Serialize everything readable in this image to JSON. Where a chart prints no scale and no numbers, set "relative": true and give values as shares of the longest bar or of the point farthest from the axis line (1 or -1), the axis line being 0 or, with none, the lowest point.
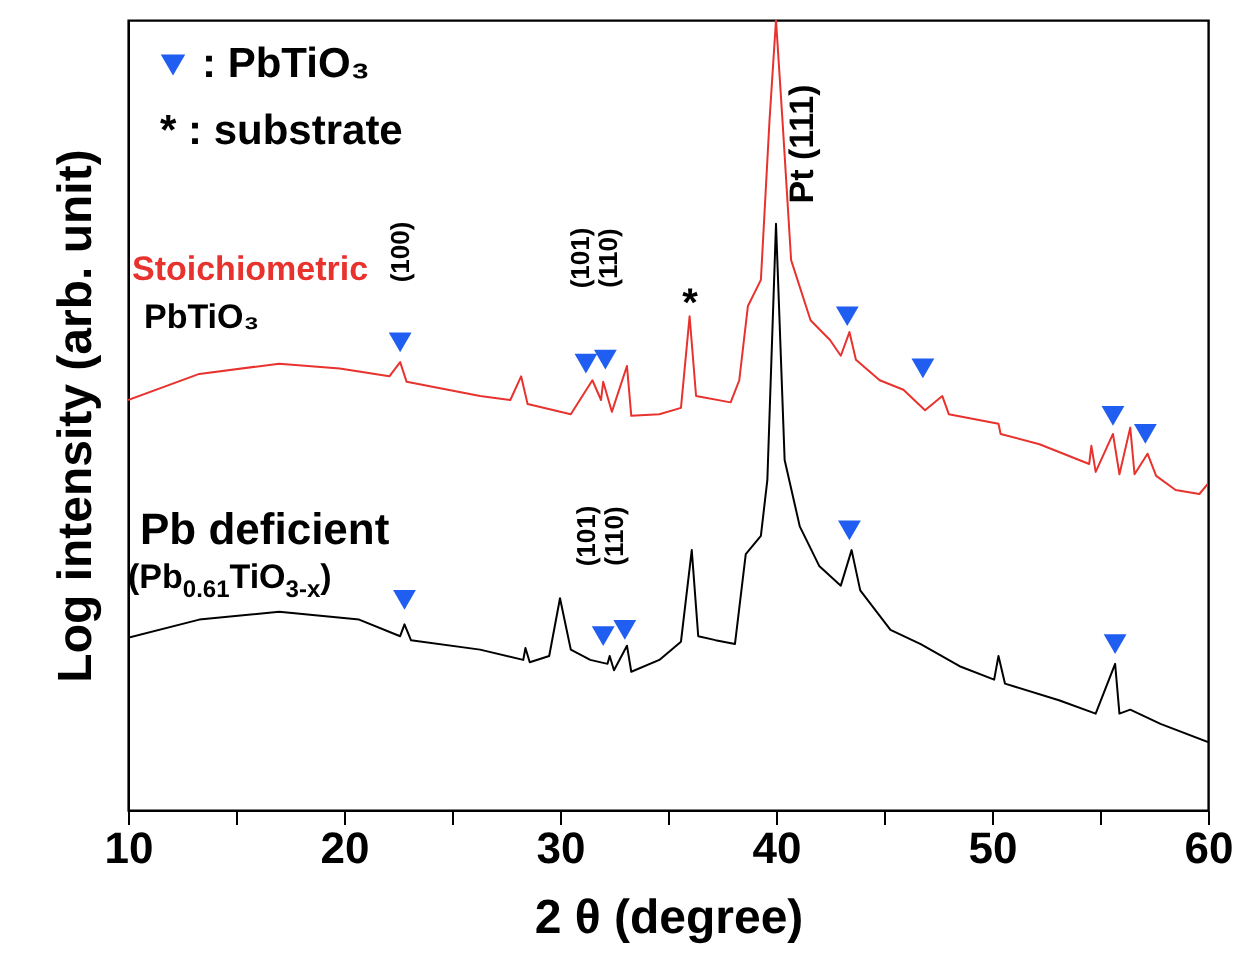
{
  "chart_data": {
    "type": "line",
    "xlabel": "2 θ (degree)",
    "ylabel": "Log intensity (arb. unit)",
    "relative": true,
    "xlim": [
      10,
      60
    ],
    "xticks": [
      10,
      {
        "value": 15,
        "label": null
      },
      20,
      {
        "value": 25,
        "label": null
      },
      30,
      {
        "value": 35,
        "label": null
      },
      40,
      {
        "value": 45,
        "label": null
      },
      50,
      {
        "value": 55,
        "label": null
      },
      60
    ],
    "grid": false,
    "legend": "top left",
    "series": [
      {
        "name": "Stoichiometric",
        "color": "#e8322e",
        "x": [
          10,
          13.3,
          17.0,
          19.8,
          22.1,
          22.6,
          22.9,
          26.3,
          27.7,
          28.2,
          28.5,
          30.5,
          31.5,
          31.9,
          32.0,
          32.4,
          33.1,
          33.3,
          34.6,
          35.6,
          36.0,
          36.3,
          37.9,
          38.3,
          38.7,
          39.3,
          39.7,
          40.0,
          40.3,
          40.7,
          41.6,
          42.5,
          43.0,
          43.4,
          43.7,
          44.8,
          45.9,
          46.9,
          47.7,
          48.0,
          50.3,
          50.4,
          52.2,
          54.5,
          54.6,
          54.8,
          55.6,
          55.9,
          56.4,
          56.6,
          57.2,
          57.6,
          58.5,
          59.6,
          60
        ],
        "values": [
          0.519,
          0.552,
          0.565,
          0.559,
          0.549,
          0.567,
          0.542,
          0.524,
          0.519,
          0.549,
          0.514,
          0.501,
          0.544,
          0.519,
          0.542,
          0.504,
          0.562,
          0.499,
          0.501,
          0.509,
          0.625,
          0.524,
          0.516,
          0.544,
          0.638,
          0.671,
          0.873,
          1,
          0.873,
          0.696,
          0.62,
          0.595,
          0.575,
          0.605,
          0.57,
          0.544,
          0.532,
          0.506,
          0.524,
          0.501,
          0.489,
          0.476,
          0.463,
          0.438,
          0.461,
          0.428,
          0.476,
          0.425,
          0.484,
          0.425,
          0.451,
          0.423,
          0.405,
          0.4,
          0.413
        ]
      },
      {
        "name": "Pb deficient",
        "color": "#000000",
        "x": [
          10,
          13.3,
          17.0,
          20.7,
          22.6,
          22.8,
          23.1,
          26.3,
          28.3,
          28.4,
          28.6,
          29.5,
          30.0,
          30.5,
          31.4,
          32.2,
          32.3,
          32.5,
          33.1,
          33.3,
          34.6,
          35.6,
          36.1,
          36.4,
          37.2,
          38.1,
          38.6,
          39.3,
          39.6,
          40.0,
          40.4,
          41.1,
          42.0,
          43.0,
          43.5,
          43.9,
          45.3,
          46.7,
          48.5,
          50.1,
          50.3,
          50.6,
          53.1,
          54.8,
          55.7,
          55.9,
          56.4,
          57.8,
          60
        ],
        "values": [
          0.218,
          0.241,
          0.251,
          0.241,
          0.22,
          0.235,
          0.215,
          0.203,
          0.19,
          0.205,
          0.187,
          0.195,
          0.268,
          0.203,
          0.19,
          0.185,
          0.195,
          0.177,
          0.208,
          0.175,
          0.19,
          0.213,
          0.329,
          0.22,
          0.215,
          0.21,
          0.324,
          0.347,
          0.418,
          0.742,
          0.443,
          0.359,
          0.309,
          0.284,
          0.329,
          0.278,
          0.228,
          0.21,
          0.182,
          0.165,
          0.195,
          0.16,
          0.139,
          0.122,
          0.185,
          0.122,
          0.127,
          0.109,
          0.086
        ]
      },
      {
        "name": ": PbTiO₃",
        "type": "scatter",
        "marker": "triangle",
        "color": "#1f5ef0",
        "x": [
          22.6,
          31.2,
          32.1,
          43.3,
          46.8,
          55.6,
          57.1,
          22.8,
          32.0,
          33.0,
          43.4,
          55.7
        ],
        "values": [
          0.592,
          0.565,
          0.57,
          0.625,
          0.559,
          0.499,
          0.476,
          0.266,
          0.22,
          0.228,
          0.354,
          0.21
        ]
      }
    ],
    "annotations": [
      "(100)",
      "(101)",
      "(110)",
      "*",
      "Pt (111)",
      "(101)",
      "(110)",
      "* : substrate",
      "PbTiO₃",
      "(Pb$_{0.61}$TiO$_{3-x}$)"
    ]
  }
}
